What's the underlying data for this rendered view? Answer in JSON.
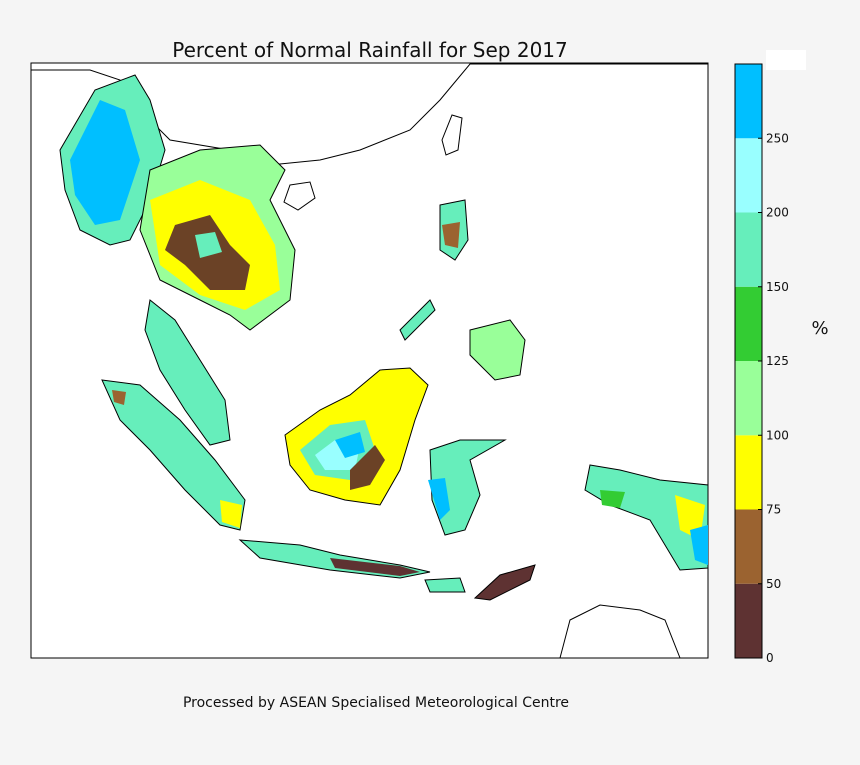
{
  "title": "Percent of Normal Rainfall for Sep 2017",
  "colorbar": {
    "label": "%",
    "ticks": [
      0,
      50,
      75,
      100,
      125,
      150,
      200,
      250
    ],
    "colors": [
      "#5e3232",
      "#9b6330",
      "#ffff00",
      "#99ff99",
      "#33cc33",
      "#66eebb",
      "#99ffff",
      "#00bfff"
    ]
  },
  "footer": "Processed by ASEAN Specialised Meteorological Centre"
}
